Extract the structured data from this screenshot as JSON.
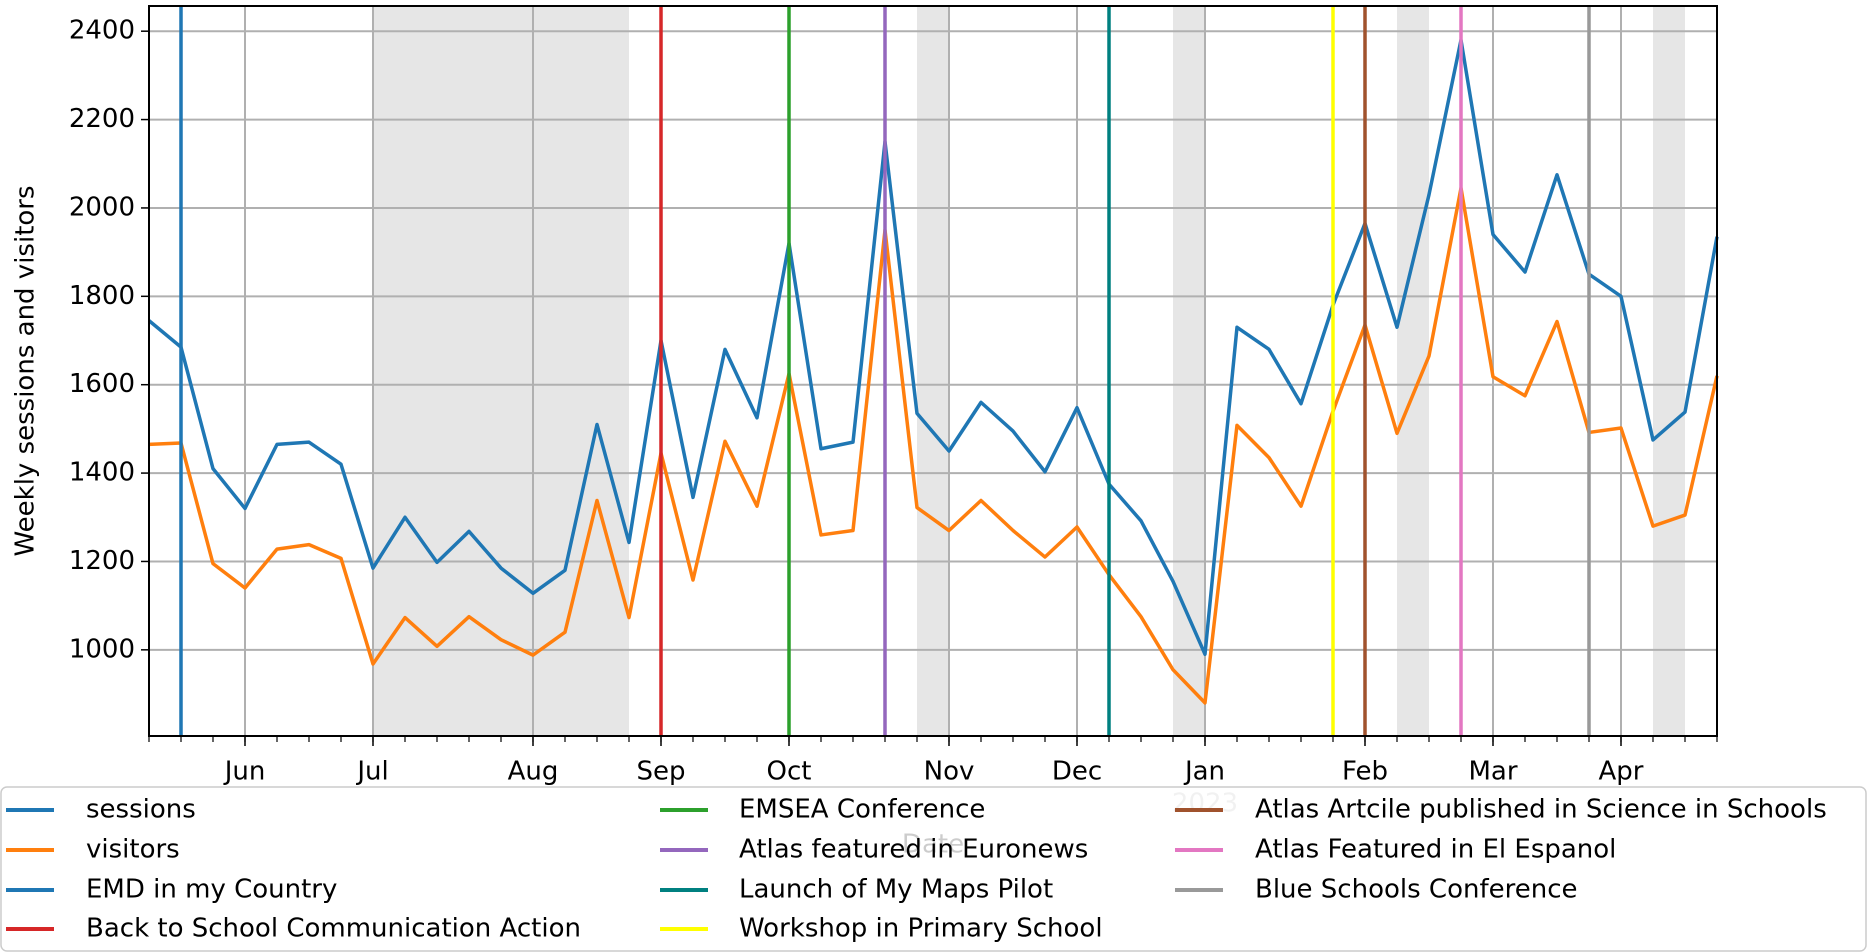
{
  "chart_data": {
    "type": "line",
    "ylabel": "Weekly sessions and visitors",
    "xlabel": "Date",
    "x": [
      0,
      1,
      2,
      3,
      4,
      5,
      6,
      7,
      8,
      9,
      10,
      11,
      12,
      13,
      14,
      15,
      16,
      17,
      18,
      19,
      20,
      21,
      22,
      23,
      24,
      25,
      26,
      27,
      28,
      29,
      30,
      31,
      32,
      33,
      34,
      35,
      36,
      37,
      38,
      39,
      40,
      41,
      42,
      43,
      44,
      45,
      46,
      47,
      48,
      49
    ],
    "series": [
      {
        "name": "sessions",
        "color": "#1f77b4",
        "values": [
          1745,
          1685,
          1410,
          1320,
          1465,
          1470,
          1420,
          1185,
          1300,
          1198,
          1268,
          1185,
          1128,
          1180,
          1510,
          1243,
          1700,
          1345,
          1680,
          1525,
          1920,
          1455,
          1470,
          2150,
          1535,
          1450,
          1560,
          1495,
          1403,
          1548,
          1375,
          1292,
          1155,
          990,
          1730,
          1680,
          1557,
          1780,
          1965,
          1730,
          2030,
          2380,
          1940,
          1855,
          2075,
          1850,
          1800,
          1475,
          1538,
          1935
        ]
      },
      {
        "name": "visitors",
        "color": "#ff7f0e",
        "values": [
          1465,
          1468,
          1195,
          1140,
          1228,
          1238,
          1207,
          968,
          1073,
          1008,
          1075,
          1023,
          988,
          1040,
          1338,
          1073,
          1445,
          1158,
          1472,
          1325,
          1625,
          1260,
          1270,
          1950,
          1322,
          1270,
          1338,
          1270,
          1210,
          1278,
          1170,
          1075,
          955,
          880,
          1508,
          1435,
          1325,
          1540,
          1735,
          1490,
          1665,
          2045,
          1618,
          1575,
          1743,
          1492,
          1502,
          1280,
          1305,
          1620
        ]
      }
    ],
    "events": [
      {
        "name": "EMD in my Country",
        "color": "#1f77b4",
        "x": 1
      },
      {
        "name": "Back to School Communication Action",
        "color": "#d62728",
        "x": 16
      },
      {
        "name": "EMSEA Conference",
        "color": "#2ca02c",
        "x": 20
      },
      {
        "name": "Atlas featured in Euronews",
        "color": "#9467bd",
        "x": 23
      },
      {
        "name": "Launch of My Maps Pilot",
        "color": "#008080",
        "x": 30
      },
      {
        "name": "Workshop in Primary School",
        "color": "#ffff00",
        "x": 37
      },
      {
        "name": "Atlas Artcile published in Science in Schools",
        "color": "#a0522d",
        "x": 38
      },
      {
        "name": "Atlas Featured in El Espanol",
        "color": "#e377c2",
        "x": 41
      },
      {
        "name": "Blue Schools Conference",
        "color": "#999999",
        "x": 45
      }
    ],
    "shaded_spans": [
      [
        7,
        15
      ],
      [
        24,
        25
      ],
      [
        32,
        33
      ],
      [
        39,
        40
      ],
      [
        47,
        48
      ]
    ],
    "shade_color": "#e6e6e6",
    "xlim": [
      0,
      49
    ],
    "xticks": [
      {
        "value": 3,
        "label": "Jun"
      },
      {
        "value": 7,
        "label": "Jul"
      },
      {
        "value": 12,
        "label": "Aug"
      },
      {
        "value": 16,
        "label": "Sep"
      },
      {
        "value": 20,
        "label": "Oct"
      },
      {
        "value": 25,
        "label": "Nov"
      },
      {
        "value": 29,
        "label": "Dec"
      },
      {
        "value": 33,
        "label": "Jan"
      },
      {
        "value": 38,
        "label": "Feb"
      },
      {
        "value": 42,
        "label": "Mar"
      },
      {
        "value": 46,
        "label": "Apr"
      }
    ],
    "year_label": {
      "value": 33,
      "label": "2023"
    },
    "ylim": [
      805,
      2457
    ],
    "yticks": [
      1000,
      1200,
      1400,
      1600,
      1800,
      2000,
      2200,
      2400
    ],
    "grid": true,
    "legend": "lower center"
  }
}
